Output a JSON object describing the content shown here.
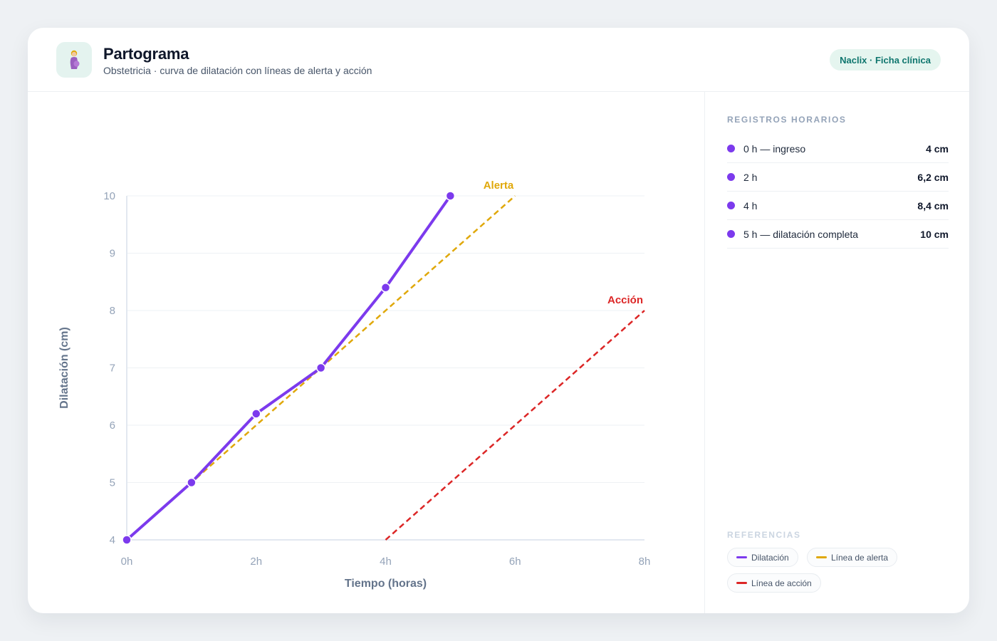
{
  "header": {
    "icon": "pregnant-woman-icon",
    "title": "Partograma",
    "subtitle": "Obstetricia · curva de dilatación con líneas de alerta y acción",
    "badge": "Naclix · Ficha clínica"
  },
  "chart_data": {
    "type": "line",
    "xlabel": "Tiempo (horas)",
    "ylabel": "Dilatación (cm)",
    "xlim": [
      0,
      8
    ],
    "ylim": [
      4,
      10
    ],
    "x_ticks": [
      0,
      2,
      4,
      6,
      8
    ],
    "x_tick_labels": [
      "0h",
      "2h",
      "4h",
      "6h",
      "8h"
    ],
    "y_ticks": [
      4,
      5,
      6,
      7,
      8,
      9,
      10
    ],
    "y_tick_labels": [
      "4",
      "5",
      "6",
      "7",
      "8",
      "9",
      "10"
    ],
    "grid": "horizontal",
    "series": [
      {
        "key": "dilatacion",
        "color": "#7c3aed",
        "style": "solid-markers",
        "x": [
          0,
          1,
          2,
          3,
          4,
          5
        ],
        "y": [
          4,
          5,
          6.2,
          7,
          8.4,
          10
        ]
      },
      {
        "key": "alerta",
        "name": "Alerta",
        "color": "#e0a80a",
        "style": "dashed",
        "x": [
          0,
          6
        ],
        "y": [
          4,
          10
        ]
      },
      {
        "key": "accion",
        "name": "Acción",
        "color": "#dc2626",
        "style": "dashed",
        "x": [
          4,
          8
        ],
        "y": [
          4,
          8
        ]
      }
    ]
  },
  "sidebar": {
    "records_title": "REGISTROS HORARIOS",
    "records": [
      {
        "label": "0 h — ingreso",
        "value": "4 cm"
      },
      {
        "label": "2 h",
        "value": "6,2 cm"
      },
      {
        "label": "4 h",
        "value": "8,4 cm"
      },
      {
        "label": "5 h — dilatación completa",
        "value": "10 cm"
      }
    ],
    "legend_title": "REFERENCIAS",
    "legend": [
      {
        "label": "Dilatación",
        "color": "#7c3aed"
      },
      {
        "label": "Línea de alerta",
        "color": "#e0a80a"
      },
      {
        "label": "Línea de acción",
        "color": "#dc2626"
      }
    ]
  }
}
